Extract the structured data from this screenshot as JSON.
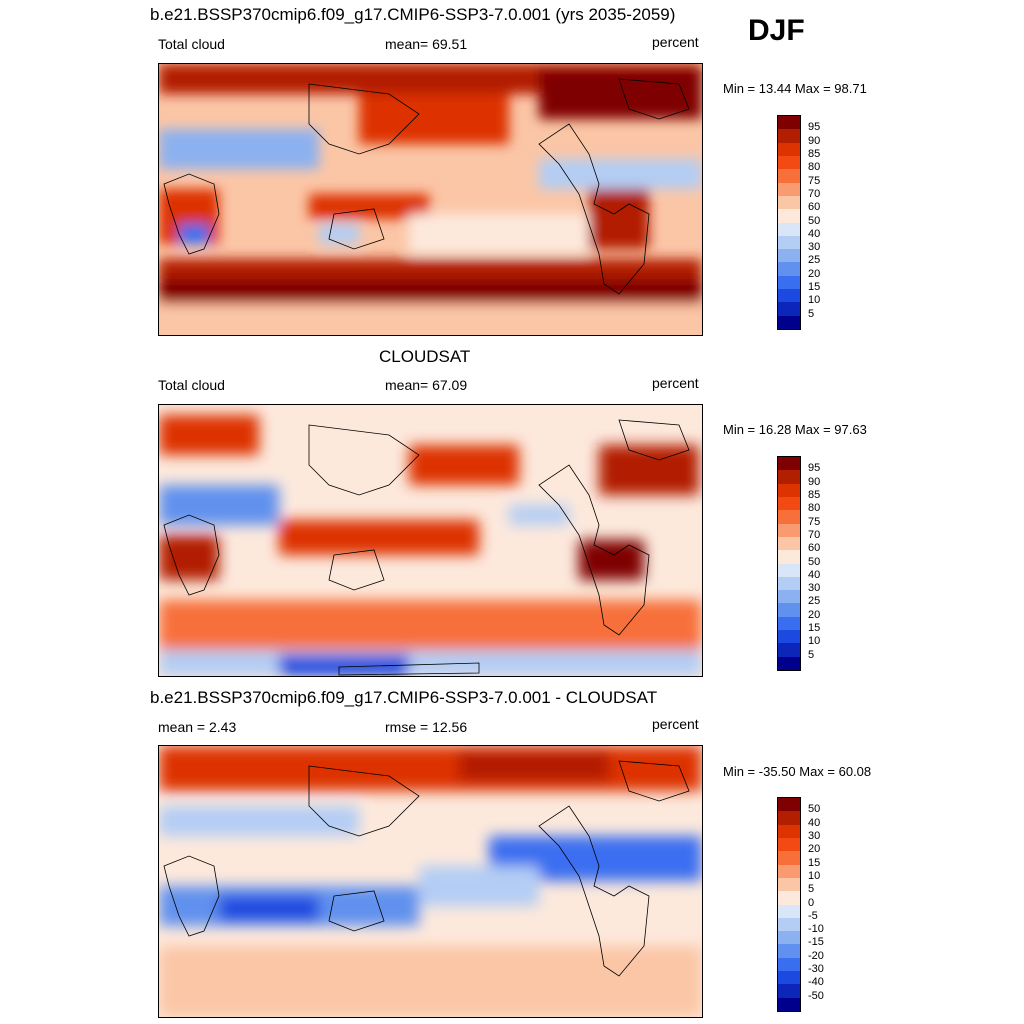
{
  "season": "DJF",
  "panels": [
    {
      "id": "model",
      "title": "b.e21.BSSP370cmip6.f09_g17.CMIP6-SSP3-7.0.001 (yrs 2035-2059)",
      "left_label": "Total cloud",
      "center_label": "mean=  69.51",
      "right_label": "percent",
      "minmax": "Min =  13.44 Max =  98.71",
      "colorbar_labels": [
        "95",
        "90",
        "85",
        "80",
        "75",
        "70",
        "60",
        "50",
        "40",
        "30",
        "25",
        "20",
        "15",
        "10",
        "5"
      ]
    },
    {
      "id": "obs",
      "title": "CLOUDSAT",
      "left_label": "Total cloud",
      "center_label": "mean=  67.09",
      "right_label": "percent",
      "minmax": "Min =  16.28 Max =  97.63",
      "colorbar_labels": [
        "95",
        "90",
        "85",
        "80",
        "75",
        "70",
        "60",
        "50",
        "40",
        "30",
        "25",
        "20",
        "15",
        "10",
        "5"
      ]
    },
    {
      "id": "diff",
      "title": "b.e21.BSSP370cmip6.f09_g17.CMIP6-SSP3-7.0.001 - CLOUDSAT",
      "left_label": "mean =   2.43",
      "center_label": "rmse =  12.56",
      "right_label": "percent",
      "minmax": "Min = -35.50 Max =  60.08",
      "colorbar_labels": [
        "50",
        "40",
        "30",
        "20",
        "15",
        "10",
        "5",
        "0",
        "-5",
        "-10",
        "-15",
        "-20",
        "-30",
        "-40",
        "-50"
      ]
    }
  ],
  "colors": {
    "scale": [
      "#7f0000",
      "#b21f00",
      "#dd3300",
      "#f24a12",
      "#f7703a",
      "#f99a70",
      "#fbc6a6",
      "#fde9dc",
      "#d8e6f8",
      "#b3cdf4",
      "#8cb1f0",
      "#6091ee",
      "#3a6ef0",
      "#1c49e0",
      "#0b26b8",
      "#00008c"
    ]
  }
}
